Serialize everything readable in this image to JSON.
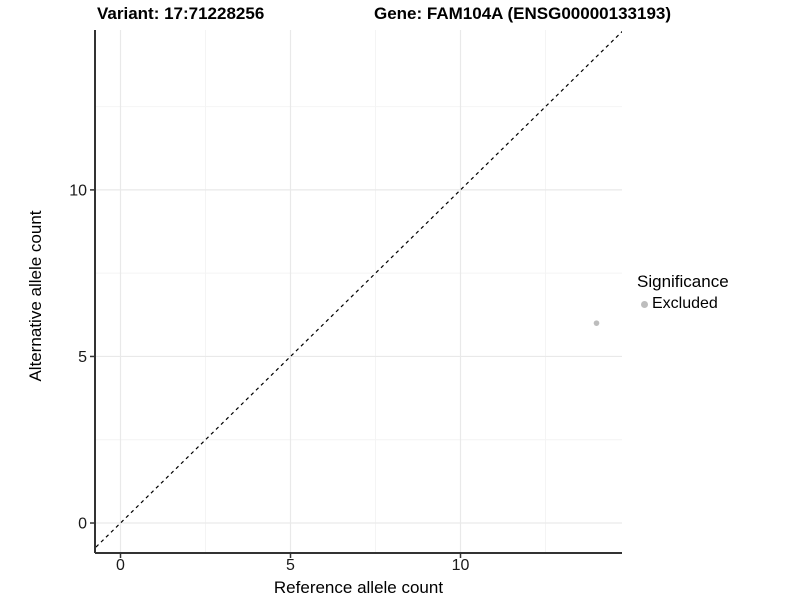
{
  "chart_data": {
    "type": "scatter",
    "titles": {
      "variant": "Variant: 17:71228256",
      "gene": "Gene: FAM104A (ENSG00000133193)"
    },
    "xlabel": "Reference allele count",
    "ylabel": "Alternative allele count",
    "xlim": [
      -0.75,
      14.75
    ],
    "ylim": [
      -0.9,
      14.8
    ],
    "x_major_ticks": [
      0,
      5,
      10
    ],
    "y_major_ticks": [
      0,
      5,
      10
    ],
    "x_minor_ticks": [
      2.5,
      7.5,
      12.5
    ],
    "y_minor_ticks": [
      2.5,
      7.5,
      12.5
    ],
    "grid": "on",
    "points": [
      {
        "x": 14,
        "y": 6,
        "significance": "Excluded"
      }
    ],
    "identity_line": {
      "equation": "y = x",
      "style": "dashed",
      "color": "#000000"
    },
    "legend": {
      "title": "Significance",
      "position": "right",
      "items": [
        {
          "label": "Excluded",
          "color": "#bdbdbd"
        }
      ]
    },
    "colors": {
      "point": "#bdbdbd",
      "axis_line": "#333333",
      "tick_label": "#1a1a1a",
      "grid_major": "#e9e9e9",
      "grid_minor": "#f4f4f4"
    },
    "point_radius": 2.8
  }
}
